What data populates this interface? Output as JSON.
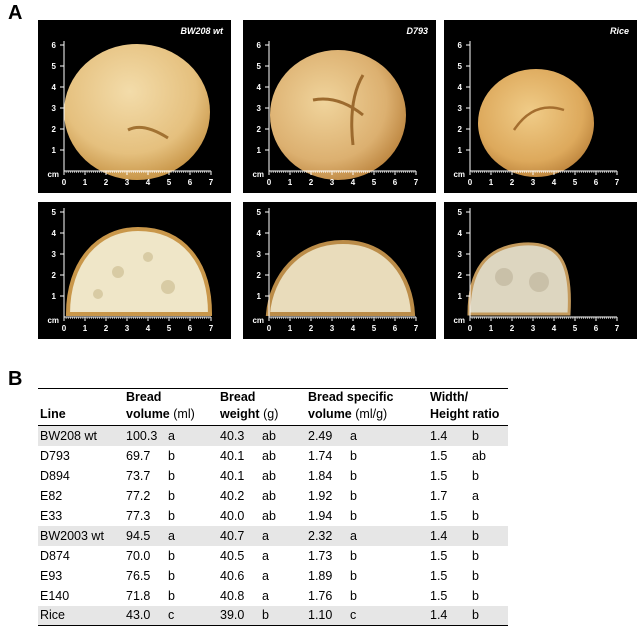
{
  "panel_a": {
    "letter": "A",
    "axis_unit": "cm",
    "x_ticks": [
      "0",
      "1",
      "2",
      "3",
      "4",
      "5",
      "6",
      "7"
    ],
    "y_ticks_top": [
      "1",
      "2",
      "3",
      "4",
      "5",
      "6"
    ],
    "y_ticks_bottom": [
      "1",
      "2",
      "3",
      "4",
      "5"
    ],
    "labels": [
      "BW208 wt",
      "D793",
      "Rice"
    ]
  },
  "panel_b": {
    "letter": "B",
    "headers": {
      "line": "Line",
      "volume_l1": "Bread",
      "volume_l2": "volume",
      "volume_unit": "(ml)",
      "weight_l1": "Bread",
      "weight_l2": "weight",
      "weight_unit": "(g)",
      "spec_l1": "Bread specific",
      "spec_l2": "volume",
      "spec_unit": "(ml/g)",
      "ratio_l1": "Width/",
      "ratio_l2": "Height ratio"
    },
    "rows": [
      {
        "line": "BW208 wt",
        "vol": "100.3",
        "vol_g": "a",
        "wt": "40.3",
        "wt_g": "ab",
        "sv": "2.49",
        "sv_g": "a",
        "r": "1.4",
        "r_g": "b"
      },
      {
        "line": "D793",
        "vol": "69.7",
        "vol_g": "b",
        "wt": "40.1",
        "wt_g": "ab",
        "sv": "1.74",
        "sv_g": "b",
        "r": "1.5",
        "r_g": "ab"
      },
      {
        "line": "D894",
        "vol": "73.7",
        "vol_g": "b",
        "wt": "40.1",
        "wt_g": "ab",
        "sv": "1.84",
        "sv_g": "b",
        "r": "1.5",
        "r_g": "b"
      },
      {
        "line": "E82",
        "vol": "77.2",
        "vol_g": "b",
        "wt": "40.2",
        "wt_g": "ab",
        "sv": "1.92",
        "sv_g": "b",
        "r": "1.7",
        "r_g": "a"
      },
      {
        "line": "E33",
        "vol": "77.3",
        "vol_g": "b",
        "wt": "40.0",
        "wt_g": "ab",
        "sv": "1.94",
        "sv_g": "b",
        "r": "1.5",
        "r_g": "b"
      },
      {
        "line": "BW2003 wt",
        "vol": "94.5",
        "vol_g": "a",
        "wt": "40.7",
        "wt_g": "a",
        "sv": "2.32",
        "sv_g": "a",
        "r": "1.4",
        "r_g": "b"
      },
      {
        "line": "D874",
        "vol": "70.0",
        "vol_g": "b",
        "wt": "40.5",
        "wt_g": "a",
        "sv": "1.73",
        "sv_g": "b",
        "r": "1.5",
        "r_g": "b"
      },
      {
        "line": "E93",
        "vol": "76.5",
        "vol_g": "b",
        "wt": "40.6",
        "wt_g": "a",
        "sv": "1.89",
        "sv_g": "b",
        "r": "1.5",
        "r_g": "b"
      },
      {
        "line": "E140",
        "vol": "71.8",
        "vol_g": "b",
        "wt": "40.8",
        "wt_g": "a",
        "sv": "1.76",
        "sv_g": "b",
        "r": "1.5",
        "r_g": "b"
      },
      {
        "line": "Rice",
        "vol": "43.0",
        "vol_g": "c",
        "wt": "39.0",
        "wt_g": "b",
        "sv": "1.10",
        "sv_g": "c",
        "r": "1.4",
        "r_g": "b"
      }
    ]
  },
  "colors": {
    "crust_light": "#e9c98a",
    "crust_dark": "#c9974a",
    "crumb": "#efe6c8",
    "rice_crumb": "#ddd6c0",
    "shade_row": "#e6e6e6"
  }
}
